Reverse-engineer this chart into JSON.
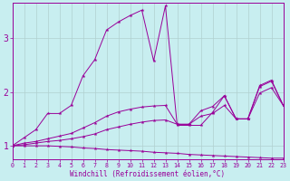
{
  "xlabel": "Windchill (Refroidissement éolien,°C)",
  "bg_color": "#c8eef0",
  "line_color": "#990099",
  "grid_color": "#b0d0d0",
  "xlim": [
    0,
    23
  ],
  "ylim": [
    0.75,
    3.65
  ],
  "xticks": [
    0,
    1,
    2,
    3,
    4,
    5,
    6,
    7,
    8,
    9,
    10,
    11,
    12,
    13,
    14,
    15,
    16,
    17,
    18,
    19,
    20,
    21,
    22,
    23
  ],
  "yticks": [
    1,
    2,
    3
  ],
  "lines": [
    {
      "x": [
        0,
        1,
        2,
        3,
        4,
        5,
        6,
        7,
        8,
        9,
        10,
        11,
        12,
        13,
        14,
        15,
        16,
        17,
        18,
        19,
        20,
        21,
        22,
        23
      ],
      "y": [
        1.0,
        1.15,
        1.3,
        1.6,
        1.6,
        1.75,
        2.3,
        2.6,
        3.15,
        3.3,
        3.42,
        3.52,
        2.58,
        3.6,
        1.38,
        1.38,
        1.38,
        1.62,
        1.93,
        1.5,
        1.5,
        2.12,
        2.22,
        1.75
      ]
    },
    {
      "x": [
        0,
        1,
        2,
        3,
        4,
        5,
        6,
        7,
        8,
        9,
        10,
        11,
        12,
        13,
        14,
        15,
        16,
        17,
        18,
        19,
        20,
        21,
        22,
        23
      ],
      "y": [
        1.0,
        1.05,
        1.08,
        1.13,
        1.18,
        1.23,
        1.33,
        1.43,
        1.55,
        1.63,
        1.68,
        1.72,
        1.74,
        1.75,
        1.4,
        1.4,
        1.65,
        1.73,
        1.93,
        1.5,
        1.5,
        2.1,
        2.2,
        1.75
      ]
    },
    {
      "x": [
        0,
        1,
        2,
        3,
        4,
        5,
        6,
        7,
        8,
        9,
        10,
        11,
        12,
        13,
        14,
        15,
        16,
        17,
        18,
        19,
        20,
        21,
        22,
        23
      ],
      "y": [
        1.0,
        1.02,
        1.05,
        1.08,
        1.1,
        1.13,
        1.17,
        1.22,
        1.3,
        1.35,
        1.4,
        1.44,
        1.47,
        1.48,
        1.4,
        1.4,
        1.55,
        1.6,
        1.75,
        1.5,
        1.5,
        1.98,
        2.08,
        1.75
      ]
    },
    {
      "x": [
        0,
        1,
        2,
        3,
        4,
        5,
        6,
        7,
        8,
        9,
        10,
        11,
        12,
        13,
        14,
        15,
        16,
        17,
        18,
        19,
        20,
        21,
        22,
        23
      ],
      "y": [
        1.0,
        1.0,
        1.0,
        1.0,
        0.99,
        0.98,
        0.96,
        0.95,
        0.93,
        0.92,
        0.91,
        0.9,
        0.88,
        0.87,
        0.86,
        0.84,
        0.83,
        0.82,
        0.81,
        0.8,
        0.79,
        0.78,
        0.77,
        0.77
      ]
    }
  ]
}
